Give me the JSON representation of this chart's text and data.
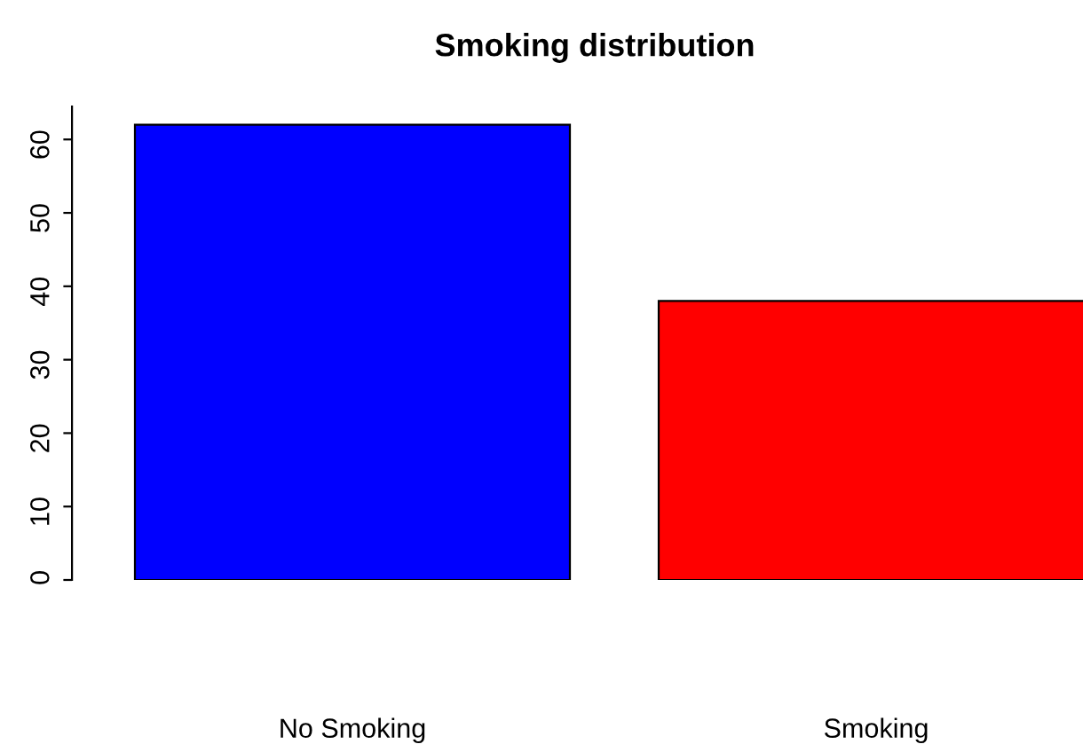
{
  "chart_data": {
    "type": "bar",
    "title": "Smoking distribution",
    "categories": [
      "No Smoking",
      "Smoking"
    ],
    "values": [
      62,
      38
    ],
    "colors": [
      "#0000ff",
      "#ff0000"
    ],
    "ylim": [
      0,
      64.5
    ],
    "yticks": [
      0,
      10,
      20,
      30,
      40,
      50,
      60
    ],
    "grid": false,
    "legend": false
  }
}
